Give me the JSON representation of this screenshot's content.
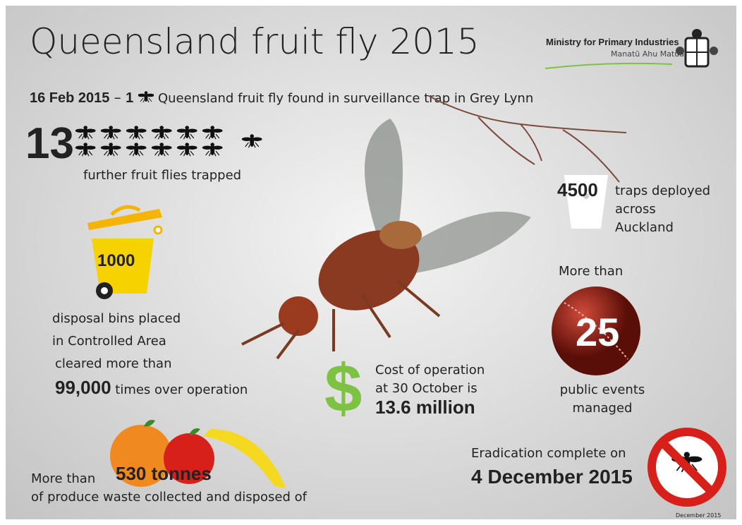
{
  "header": {
    "title": "Queensland fruit fly 2015",
    "ministry": "Ministry for Primary Industries",
    "ministry_maori": "Manatū Ahu Matua"
  },
  "intro": {
    "date": "16 Feb 2015",
    "dash": "–",
    "count": "1",
    "text": "Queensland fruit fly found in surveillance trap in Grey Lynn"
  },
  "flies": {
    "count": "13",
    "text": "further fruit flies trapped"
  },
  "traps": {
    "count": "4500",
    "lines": [
      "traps deployed",
      "across",
      "Auckland"
    ]
  },
  "bins": {
    "count": "1000",
    "lines": [
      "disposal bins placed",
      "in Controlled Area",
      "cleared more than"
    ],
    "times": "99,000",
    "times_text": "times over operation"
  },
  "cost": {
    "symbol": "$",
    "lines": [
      "Cost of operation",
      "at 30 October is"
    ],
    "amount": "13.6 million"
  },
  "events": {
    "prefix": "More than",
    "count": "25",
    "lines": [
      "public events",
      "managed"
    ]
  },
  "produce": {
    "prefix": "More than",
    "amount": "530 tonnes",
    "text": "of produce waste collected and disposed of"
  },
  "eradication": {
    "text": "Eradication complete on",
    "date": "4 December 2015"
  },
  "footer": "December 2015"
}
